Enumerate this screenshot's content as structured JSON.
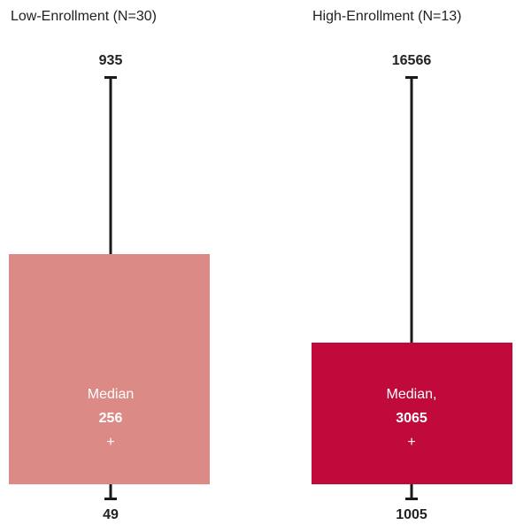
{
  "chart_data": [
    {
      "type": "box",
      "title": "Low-Enrollment (N=30)",
      "max": 935,
      "median": 256,
      "min": 49,
      "median_label": "Median",
      "median_marker": "+",
      "box_color": "#db8a86"
    },
    {
      "type": "box",
      "title": "High-Enrollment (N=13)",
      "max": 16566,
      "median": 3065,
      "min": 1005,
      "median_label": "Median,",
      "median_marker": "+",
      "box_color": "#bf0a3b"
    }
  ]
}
